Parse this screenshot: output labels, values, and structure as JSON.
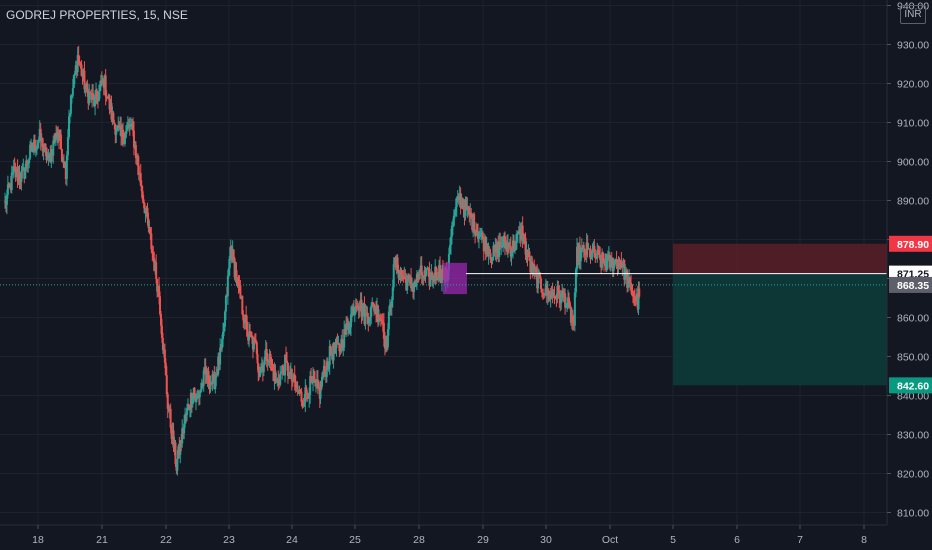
{
  "header": {
    "symbol_title": "GODREJ PROPERTIES, 15, NSE",
    "currency": "INR"
  },
  "chart_data": {
    "type": "candlestick",
    "title": "GODREJ PROPERTIES, 15, NSE",
    "ylim": [
      810,
      940
    ],
    "ytick_values": [
      940,
      930,
      920,
      910,
      900,
      890,
      880,
      870,
      860,
      850,
      840,
      830,
      820,
      810
    ],
    "ytick_labels": [
      "940.00",
      "930.00",
      "920.00",
      "910.00",
      "900.00",
      "890.00",
      "880.00",
      "870.00",
      "860.00",
      "850.00",
      "840.00",
      "830.00",
      "820.00",
      "810.00"
    ],
    "x_labels": [
      "18",
      "21",
      "22",
      "23",
      "24",
      "25",
      "28",
      "29",
      "30",
      "Oct",
      "5",
      "6",
      "7",
      "8"
    ],
    "price_levels": [
      {
        "value": 878.9,
        "label": "878.90",
        "color": "#f23645"
      },
      {
        "value": 871.25,
        "label": "871.25",
        "color": "#ffffff"
      },
      {
        "value": 868.35,
        "label": "868.35",
        "color": "#5d606b"
      },
      {
        "value": 842.6,
        "label": "842.60",
        "color": "#089981"
      }
    ],
    "position": {
      "entry": 871.25,
      "stop": 878.9,
      "target": 842.6,
      "type": "short"
    },
    "colors": {
      "up": "#26a69a",
      "down": "#ef5350",
      "stop_zone": "#5b1f26",
      "target_zone": "#0d3a39",
      "marker": "#9c27b0"
    },
    "session_closes": [
      {
        "session": "18",
        "values": [
          889,
          897,
          896,
          903,
          906,
          900,
          908,
          898
        ]
      },
      {
        "session": "21",
        "values": [
          912,
          927,
          918,
          915,
          921,
          911,
          906,
          909
        ]
      },
      {
        "session": "22",
        "values": [
          907,
          893,
          880,
          866,
          838,
          822,
          834,
          842
        ]
      },
      {
        "session": "23",
        "values": [
          838,
          845,
          843,
          852,
          878,
          866,
          855,
          852
        ]
      },
      {
        "session": "24",
        "values": [
          846,
          851,
          843,
          848,
          843,
          839,
          843,
          841
        ]
      },
      {
        "session": "25",
        "values": [
          844,
          851,
          852,
          858,
          865,
          860,
          863,
          859
        ]
      },
      {
        "session": "28",
        "values": [
          852,
          874,
          870,
          868,
          871,
          870,
          872,
          870
        ]
      },
      {
        "session": "29",
        "values": [
          880,
          891,
          887,
          883,
          879,
          876,
          879,
          878
        ]
      },
      {
        "session": "30",
        "values": [
          878,
          882,
          873,
          869,
          866,
          866,
          865,
          858
        ]
      },
      {
        "session": "Oct",
        "values": [
          876,
          877,
          876,
          874,
          874,
          875,
          868,
          864
        ]
      },
      {
        "session": "5",
        "values": [
          868
        ]
      }
    ]
  }
}
